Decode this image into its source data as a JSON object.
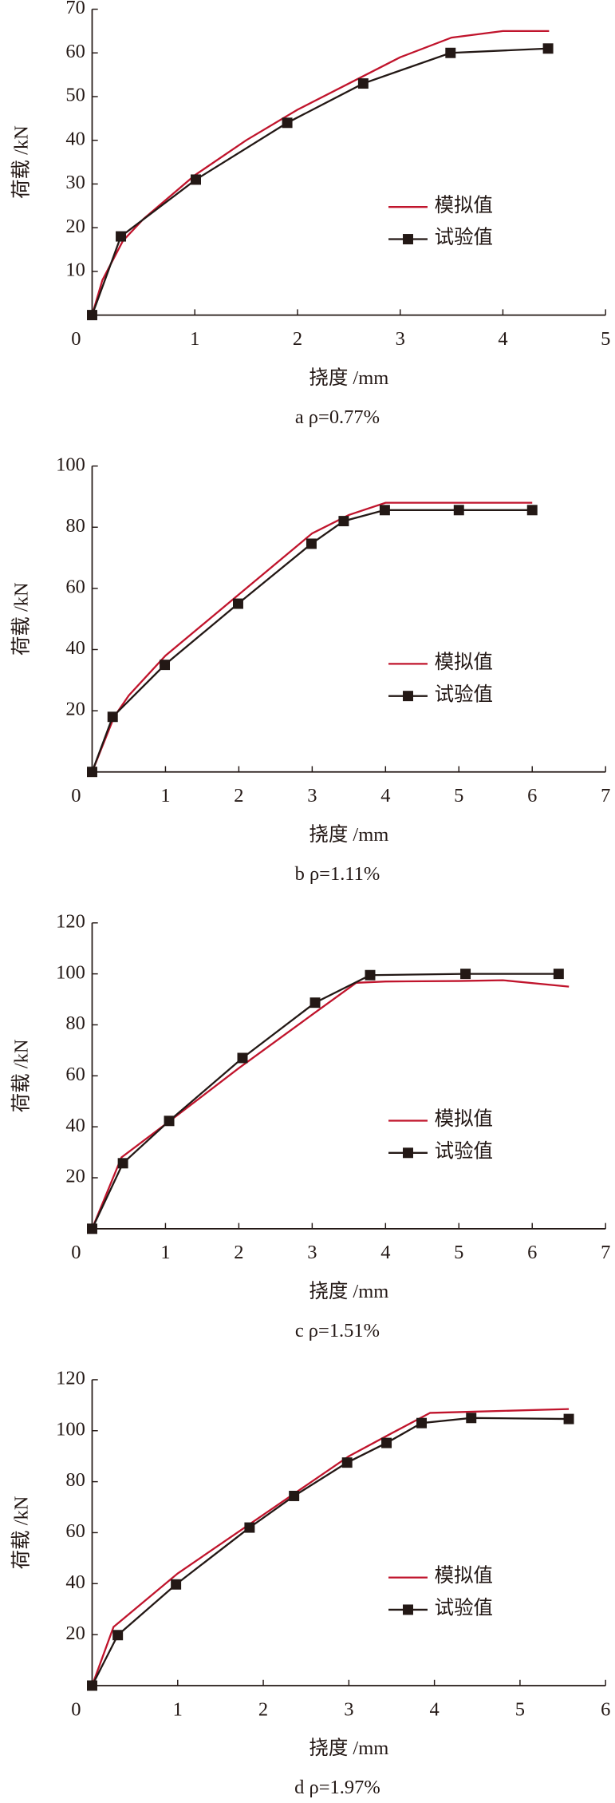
{
  "chart_data": [
    {
      "type": "line",
      "title": "a ρ=0.77%",
      "x_label": "挠度 /mm",
      "y_label": "荷载 /kN",
      "xlim": [
        0,
        5
      ],
      "ylim": [
        0,
        70
      ],
      "xticks": [
        0,
        1,
        2,
        3,
        4,
        5
      ],
      "yticks": [
        10,
        20,
        30,
        40,
        50,
        60,
        70
      ],
      "series": [
        {
          "name": "模拟值",
          "color": "#c0142c",
          "x": [
            0,
            0.1,
            0.3,
            0.5,
            1,
            1.5,
            2,
            2.5,
            3,
            3.5,
            4,
            4.45
          ],
          "values": [
            0,
            8,
            17,
            22,
            32,
            40,
            47,
            53,
            59,
            63.5,
            65,
            65
          ]
        },
        {
          "name": "试验值",
          "color": "#231815",
          "marker": "square",
          "x": [
            0,
            0.28,
            1.01,
            1.9,
            2.64,
            3.49,
            4.44
          ],
          "values": [
            0,
            18,
            31,
            44,
            53,
            60,
            61
          ]
        }
      ]
    },
    {
      "type": "line",
      "title": "b ρ=1.11%",
      "x_label": "挠度 /mm",
      "y_label": "荷载 /kN",
      "xlim": [
        0,
        7
      ],
      "ylim": [
        0,
        100
      ],
      "xticks": [
        0,
        1,
        2,
        3,
        4,
        5,
        6,
        7
      ],
      "yticks": [
        20,
        40,
        60,
        80,
        100
      ],
      "series": [
        {
          "name": "模拟值",
          "color": "#c0142c",
          "x": [
            0,
            0.3,
            0.5,
            1,
            2,
            3,
            3.5,
            4,
            5,
            6
          ],
          "values": [
            0,
            18,
            25,
            38,
            58,
            78,
            84,
            88,
            88,
            88
          ]
        },
        {
          "name": "试验值",
          "color": "#231815",
          "marker": "square",
          "x": [
            0,
            0.28,
            0.99,
            1.99,
            2.99,
            3.43,
            3.99,
            5,
            6
          ],
          "values": [
            0,
            18,
            35,
            55,
            74.6,
            82,
            85.6,
            85.6,
            85.6
          ]
        }
      ]
    },
    {
      "type": "line",
      "title": "c ρ=1.51%",
      "x_label": "挠度 /mm",
      "y_label": "荷载 /kN",
      "xlim": [
        0,
        7
      ],
      "ylim": [
        0,
        120
      ],
      "xticks": [
        0,
        1,
        2,
        3,
        4,
        5,
        6,
        7
      ],
      "yticks": [
        20,
        40,
        60,
        80,
        100,
        120
      ],
      "series": [
        {
          "name": "模拟值",
          "color": "#c0142c",
          "x": [
            0,
            0.4,
            1,
            2,
            3,
            3.6,
            4,
            5,
            5.6,
            6.5
          ],
          "values": [
            0,
            28,
            41,
            63,
            84,
            96.5,
            97,
            97.2,
            97.5,
            95
          ]
        },
        {
          "name": "试验值",
          "color": "#231815",
          "marker": "square",
          "x": [
            0,
            0.42,
            1.05,
            2.05,
            3.04,
            3.79,
            5.09,
            6.36
          ],
          "values": [
            0,
            25.7,
            42.3,
            67,
            88.7,
            99.5,
            100,
            100
          ]
        }
      ]
    },
    {
      "type": "line",
      "title": "d ρ=1.97%",
      "x_label": "挠度 /mm",
      "y_label": "荷载 /kN",
      "xlim": [
        0,
        6
      ],
      "ylim": [
        0,
        120
      ],
      "xticks": [
        0,
        1,
        2,
        3,
        4,
        5,
        6
      ],
      "yticks": [
        20,
        40,
        60,
        80,
        100,
        120
      ],
      "series": [
        {
          "name": "模拟值",
          "color": "#c0142c",
          "x": [
            0,
            0.25,
            1,
            2,
            3,
            3.5,
            3.95,
            4.5,
            5.57
          ],
          "values": [
            0,
            23,
            44,
            67,
            90,
            99,
            107,
            107.5,
            108.5
          ]
        },
        {
          "name": "试验值",
          "color": "#231815",
          "marker": "square",
          "x": [
            0,
            0.3,
            0.98,
            1.84,
            2.36,
            2.98,
            3.44,
            3.85,
            4.43,
            5.57
          ],
          "values": [
            0,
            19.8,
            39.7,
            62,
            74.4,
            87.5,
            95.2,
            103,
            105,
            104.6
          ]
        }
      ]
    }
  ]
}
